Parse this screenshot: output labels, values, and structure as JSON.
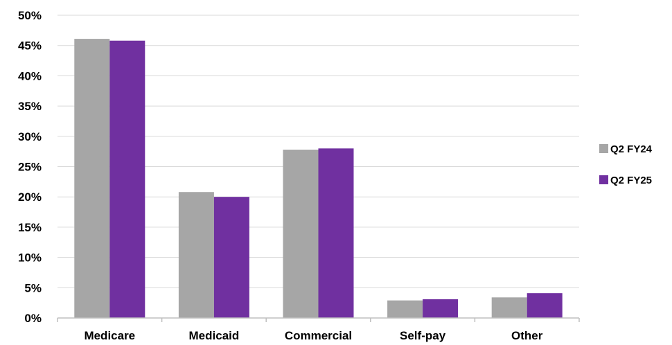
{
  "chart_data": {
    "type": "bar",
    "categories": [
      "Medicare",
      "Medicaid",
      "Commercial",
      "Self-pay",
      "Other"
    ],
    "series": [
      {
        "name": "Q2 FY24",
        "color": "#a6a6a6",
        "values": [
          46.1,
          20.8,
          27.8,
          2.9,
          3.4
        ]
      },
      {
        "name": "Q2 FY25",
        "color": "#7030a0",
        "values": [
          45.8,
          20.0,
          28.0,
          3.1,
          4.1
        ]
      }
    ],
    "ylim": [
      0,
      50
    ],
    "yticks": [
      0,
      5,
      10,
      15,
      20,
      25,
      30,
      35,
      40,
      45,
      50
    ],
    "ytick_labels": [
      "0%",
      "5%",
      "10%",
      "15%",
      "20%",
      "25%",
      "30%",
      "35%",
      "40%",
      "45%",
      "50%"
    ],
    "title": "",
    "xlabel": "",
    "ylabel": "",
    "grid": true,
    "gridline_color": "#d9d9d9",
    "legend_position": "right"
  }
}
